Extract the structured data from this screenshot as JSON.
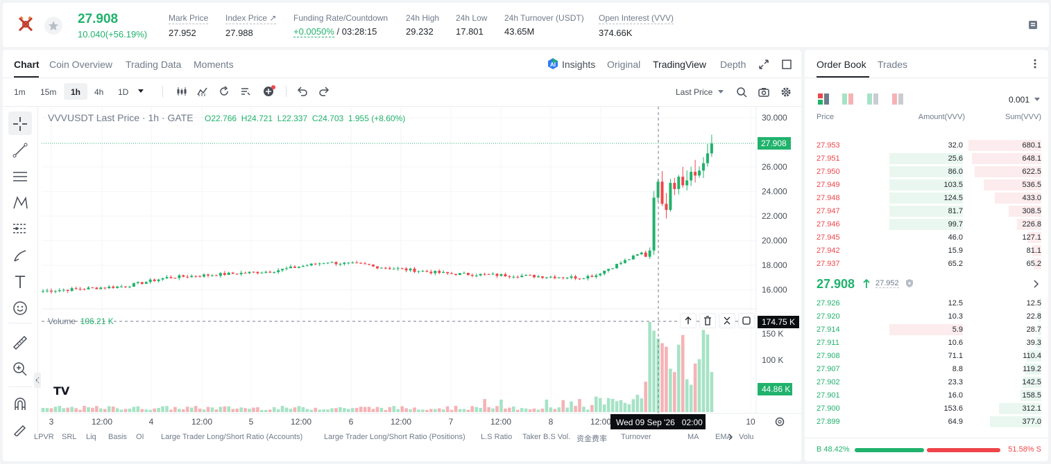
{
  "header": {
    "last_price": "27.908",
    "change": "10.040(+56.19%)",
    "stats": [
      {
        "label": "Mark Price",
        "value": "27.952"
      },
      {
        "label": "Index Price ↗",
        "value": "27.988"
      },
      {
        "label": "Funding Rate/Countdown",
        "value": "+0.0050%",
        "value2": " / 03:28:15"
      },
      {
        "label": "24h High",
        "value": "29.232"
      },
      {
        "label": "24h Low",
        "value": "17.801"
      },
      {
        "label": "24h Turnover (USDT)",
        "value": "43.65M"
      },
      {
        "label": "Open Interest (VVV)",
        "value": "374.66K"
      }
    ]
  },
  "chart_tabs": [
    "Chart",
    "Coin Overview",
    "Trading Data",
    "Moments"
  ],
  "view_tabs": {
    "insights": "Insights",
    "original": "Original",
    "tradingview": "TradingView",
    "depth": "Depth"
  },
  "intervals": [
    "1m",
    "15m",
    "1h",
    "4h",
    "1D"
  ],
  "price_type": "Last Price",
  "chart": {
    "symbol": "VVVUSDT Last Price · 1h · GATE",
    "ohlc": {
      "o": "O22.766",
      "h": "H24.721",
      "l": "L22.337",
      "c": "C24.703",
      "chg": "1.955 (+8.60%)"
    },
    "current_price_label": "27.908",
    "volume_label": "Volume",
    "volume_value": "106.21 K",
    "volume_cursor_label": "174.75 K",
    "volume_current_label": "44.86 K",
    "crosshair_time": "Wed 09 Sep '26   02:00",
    "price_ticks": [
      "30.000",
      "26.000",
      "24.000",
      "22.000",
      "20.000",
      "18.000",
      "16.000"
    ],
    "volume_ticks": [
      "150 K",
      "100 K"
    ],
    "time_ticks": [
      "3",
      "12:00",
      "4",
      "12:00",
      "5",
      "12:00",
      "6",
      "12:00",
      "7",
      "12:00",
      "8",
      "12:00",
      "10"
    ],
    "logo": "TV"
  },
  "indicators": [
    "LPVR",
    "SRL",
    "Liq",
    "Basis",
    "OI",
    "Large Trader Long/Short Ratio (Accounts)",
    "Large Trader Long/Short Ratio (Positions)",
    "L.S Ratio",
    "Taker B.S Vol.",
    "资金费率",
    "Turnover",
    "MA",
    "EMA",
    "Volu"
  ],
  "orderbook": {
    "tabs": [
      "Order Book",
      "Trades"
    ],
    "precision": "0.001",
    "headers": {
      "price": "Price",
      "amount": "Amount(VVV)",
      "sum": "Sum(VVV)"
    },
    "asks": [
      {
        "price": "27.953",
        "amount": "32.0",
        "sum": "680.1",
        "af": 0,
        "sf": 1.0
      },
      {
        "price": "27.951",
        "amount": "25.6",
        "sum": "648.1",
        "af": 0.58,
        "sf": 0.95
      },
      {
        "price": "27.950",
        "amount": "86.0",
        "sum": "622.5",
        "af": 0.58,
        "sf": 0.91
      },
      {
        "price": "27.949",
        "amount": "103.5",
        "sum": "536.5",
        "af": 0.58,
        "sf": 0.79
      },
      {
        "price": "27.948",
        "amount": "124.5",
        "sum": "433.0",
        "af": 0.58,
        "sf": 0.64
      },
      {
        "price": "27.947",
        "amount": "81.7",
        "sum": "308.5",
        "af": 0.58,
        "sf": 0.45
      },
      {
        "price": "27.946",
        "amount": "99.7",
        "sum": "226.8",
        "af": 0.58,
        "sf": 0.33
      },
      {
        "price": "27.945",
        "amount": "46.0",
        "sum": "127.1",
        "af": 0,
        "sf": 0.19
      },
      {
        "price": "27.942",
        "amount": "15.9",
        "sum": "81.1",
        "af": 0,
        "sf": 0.12
      },
      {
        "price": "27.937",
        "amount": "65.2",
        "sum": "65.2",
        "af": 0,
        "sf": 0.1
      }
    ],
    "mid_price": "27.908",
    "mid_mark": "27.952",
    "bids": [
      {
        "price": "27.926",
        "amount": "12.5",
        "sum": "12.5",
        "af": 0,
        "sf": 0.02
      },
      {
        "price": "27.920",
        "amount": "10.3",
        "sum": "22.8",
        "af": 0,
        "sf": 0.04
      },
      {
        "price": "27.914",
        "amount": "5.9",
        "sum": "28.7",
        "af": 0.58,
        "sf": 0.05
      },
      {
        "price": "27.911",
        "amount": "10.6",
        "sum": "39.3",
        "af": 0,
        "sf": 0.07
      },
      {
        "price": "27.908",
        "amount": "71.1",
        "sum": "110.4",
        "af": 0,
        "sf": 0.2
      },
      {
        "price": "27.907",
        "amount": "8.8",
        "sum": "119.2",
        "af": 0,
        "sf": 0.22
      },
      {
        "price": "27.902",
        "amount": "23.3",
        "sum": "142.5",
        "af": 0,
        "sf": 0.26
      },
      {
        "price": "27.901",
        "amount": "16.0",
        "sum": "158.5",
        "af": 0,
        "sf": 0.29
      },
      {
        "price": "27.900",
        "amount": "153.6",
        "sum": "312.1",
        "af": 0,
        "sf": 0.58
      },
      {
        "price": "27.899",
        "amount": "64.9",
        "sum": "377.0",
        "af": 0,
        "sf": 0.7
      }
    ],
    "buy_ratio": "B 48.42%",
    "sell_ratio": "51.58% S",
    "buy_fraction": 0.4842
  },
  "colors": {
    "up": "#20b26c",
    "down": "#ef454a",
    "up_bar": "#e9f7f0",
    "down_bar": "#fdeced"
  }
}
